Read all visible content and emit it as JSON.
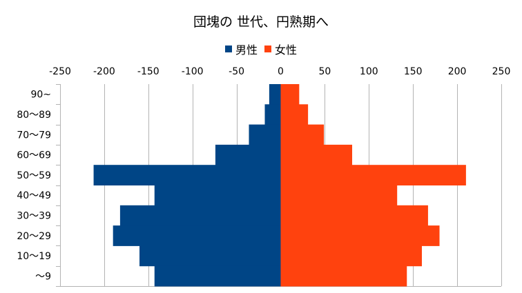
{
  "chart_data": {
    "type": "bar",
    "orientation": "horizontal-population-pyramid",
    "title": "団塊の 世代、円熟期へ",
    "legend_position": "top",
    "grid": true,
    "xlim": [
      -250,
      250
    ],
    "x_ticks": [
      "-250",
      "-200",
      "-150",
      "-100",
      "-50",
      "0",
      "50",
      "100",
      "150",
      "200",
      "250"
    ],
    "categories": [
      "90~",
      "80～89",
      "70～79",
      "60～69",
      "50～59",
      "40～49",
      "30～39",
      "20～29",
      "10～19",
      "～9"
    ],
    "series": [
      {
        "name": "男性",
        "color": "#004586",
        "values": [
          -13,
          -18,
          -36,
          -74,
          -212,
          -143,
          -182,
          -190,
          -160,
          -143
        ]
      },
      {
        "name": "女性",
        "color": "#ff420e",
        "values": [
          21,
          31,
          49,
          81,
          210,
          132,
          167,
          180,
          160,
          143
        ]
      }
    ]
  }
}
